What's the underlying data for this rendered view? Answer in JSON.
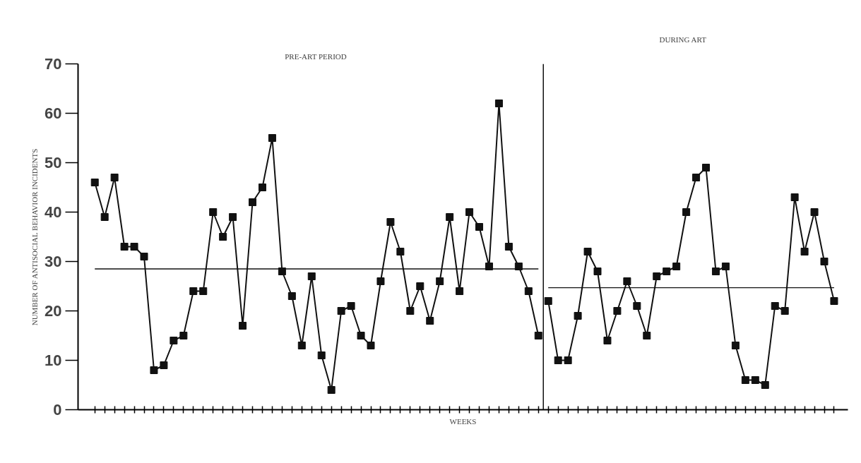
{
  "chart_data": {
    "type": "line",
    "xlabel": "WEEKS",
    "ylabel": "NUMBER OF ANTISOCIAL BEHAVIOR INCIDENTS",
    "annotations": [
      "PRE-ART PERIOD",
      "DURING ART"
    ],
    "categories": [
      null,
      null,
      null,
      null,
      null,
      null,
      null,
      null,
      null,
      null,
      null,
      null,
      null,
      null,
      null,
      null,
      null,
      null,
      null,
      null,
      null,
      null,
      null,
      null,
      null,
      null,
      null,
      null,
      null,
      null,
      null,
      null,
      null,
      null,
      null,
      null,
      null,
      null,
      null,
      null,
      null,
      null,
      null,
      null,
      null,
      null,
      null,
      null,
      null,
      null,
      null,
      null,
      null,
      null,
      null,
      null,
      null,
      null,
      null,
      null,
      null,
      null,
      null,
      null,
      null,
      null,
      null,
      null,
      null,
      null,
      null,
      null,
      null,
      null,
      null,
      null
    ],
    "series": [
      {
        "color": "#111111",
        "values": [
          46,
          39,
          47,
          33,
          33,
          31,
          8,
          9,
          14,
          15,
          24,
          24,
          40,
          35,
          39,
          17,
          42,
          45,
          55,
          28,
          23,
          13,
          27,
          11,
          4,
          20,
          21,
          15,
          13,
          26,
          38,
          32,
          20,
          25,
          18,
          26,
          39,
          24,
          40,
          37,
          29,
          62,
          33,
          29,
          24,
          15,
          null,
          null,
          null,
          null,
          null,
          null,
          null,
          null,
          null,
          null,
          null,
          null,
          null,
          null,
          null,
          null,
          null,
          null,
          null,
          null,
          null,
          null,
          null,
          null,
          null,
          null,
          null,
          null,
          null,
          null
        ]
      },
      {
        "color": "#111111",
        "values": [
          null,
          null,
          null,
          null,
          null,
          null,
          null,
          null,
          null,
          null,
          null,
          null,
          null,
          null,
          null,
          null,
          null,
          null,
          null,
          null,
          null,
          null,
          null,
          null,
          null,
          null,
          null,
          null,
          null,
          null,
          null,
          null,
          null,
          null,
          null,
          null,
          null,
          null,
          null,
          null,
          null,
          null,
          null,
          null,
          null,
          null,
          22,
          10,
          10,
          19,
          32,
          28,
          14,
          20,
          26,
          21,
          15,
          27,
          28,
          29,
          40,
          47,
          49,
          28,
          29,
          13,
          6,
          6,
          5,
          21,
          20,
          43,
          32,
          40,
          30,
          22
        ]
      },
      {
        "color": "#111111",
        "marker": "none",
        "values": [
          28.5,
          28.5,
          28.5,
          28.5,
          28.5,
          28.5,
          28.5,
          28.5,
          28.5,
          28.5,
          28.5,
          28.5,
          28.5,
          28.5,
          28.5,
          28.5,
          28.5,
          28.5,
          28.5,
          28.5,
          28.5,
          28.5,
          28.5,
          28.5,
          28.5,
          28.5,
          28.5,
          28.5,
          28.5,
          28.5,
          28.5,
          28.5,
          28.5,
          28.5,
          28.5,
          28.5,
          28.5,
          28.5,
          28.5,
          28.5,
          28.5,
          28.5,
          28.5,
          28.5,
          28.5,
          28.5,
          null,
          null,
          null,
          null,
          null,
          null,
          null,
          null,
          null,
          null,
          null,
          null,
          null,
          null,
          null,
          null,
          null,
          null,
          null,
          null,
          null,
          null,
          null,
          null,
          null,
          null,
          null,
          null,
          null,
          null
        ]
      },
      {
        "color": "#111111",
        "marker": "none",
        "values": [
          null,
          null,
          null,
          null,
          null,
          null,
          null,
          null,
          null,
          null,
          null,
          null,
          null,
          null,
          null,
          null,
          null,
          null,
          null,
          null,
          null,
          null,
          null,
          null,
          null,
          null,
          null,
          null,
          null,
          null,
          null,
          null,
          null,
          null,
          null,
          null,
          null,
          null,
          null,
          null,
          null,
          null,
          null,
          null,
          null,
          null,
          24.7,
          24.7,
          24.7,
          24.7,
          24.7,
          24.7,
          24.7,
          24.7,
          24.7,
          24.7,
          24.7,
          24.7,
          24.7,
          24.7,
          24.7,
          24.7,
          24.7,
          24.7,
          24.7,
          24.7,
          24.7,
          24.7,
          24.7,
          24.7,
          24.7,
          24.7,
          24.7,
          24.7,
          24.7,
          24.7
        ]
      }
    ],
    "ylim": [
      0,
      70
    ],
    "yticks": [
      0,
      10,
      20,
      30,
      40,
      50,
      60,
      70
    ],
    "grid": false,
    "marker": "square",
    "line_style": "solid"
  }
}
